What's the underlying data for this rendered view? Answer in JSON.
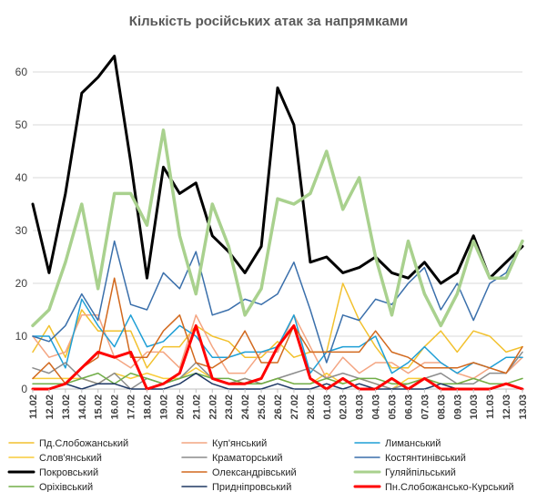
{
  "chart_data": {
    "type": "line",
    "title": "Кількість російських атак за напрямками",
    "xlabel": "",
    "ylabel": "",
    "ylim": [
      0,
      65
    ],
    "yticks": [
      0,
      10,
      20,
      30,
      40,
      50,
      60
    ],
    "grid": true,
    "legend_position": "bottom",
    "x": [
      "11.02",
      "12.02",
      "13.02",
      "14.02",
      "15.02",
      "16.02",
      "17.02",
      "18.02",
      "19.02",
      "20.02",
      "21.02",
      "22.02",
      "23.02",
      "24.02",
      "25.02",
      "26.02",
      "27.02",
      "28.02",
      "01.03",
      "02.03",
      "03.03",
      "04.03",
      "05.03",
      "06.03",
      "07.03",
      "08.03",
      "09.03",
      "10.03",
      "11.03",
      "12.03",
      "13.03"
    ],
    "x_labeled": [
      "11.02",
      "12.02",
      "13.02",
      "14.02",
      "15.02",
      "16.02",
      "17.02",
      "18.02",
      "19.02",
      "20.02",
      "21.02",
      "22.02",
      "23.02",
      "24.02",
      "25.02",
      "26.02",
      "27.02",
      "28.02",
      "01.03",
      "02.03",
      "03.03",
      "04.03",
      "05.03",
      "06.03",
      "07.03",
      "08.03",
      "09.03",
      "10.03",
      "11.03",
      "12.03",
      "13.03"
    ],
    "series": [
      {
        "name": "Пд.Слобожанський",
        "color": "#f2c12e",
        "width": 1.5,
        "values": [
          7,
          12,
          6,
          15,
          11,
          11,
          11,
          4,
          8,
          8,
          12,
          10,
          9,
          6,
          6,
          9,
          6,
          7,
          7,
          20,
          13,
          8,
          4,
          4,
          8,
          11,
          7,
          11,
          10,
          7,
          8
        ]
      },
      {
        "name": "Куп'янський",
        "color": "#f4a582",
        "width": 1.5,
        "values": [
          10,
          6,
          7,
          14,
          14,
          6,
          4,
          7,
          7,
          4,
          14,
          8,
          3,
          3,
          7,
          7,
          14,
          8,
          2,
          6,
          3,
          5,
          5,
          3,
          5,
          5,
          3,
          2,
          4,
          3,
          6
        ]
      },
      {
        "name": "Лиманський",
        "color": "#1f9fd6",
        "width": 1.5,
        "values": [
          10,
          10,
          4,
          17,
          12,
          8,
          14,
          8,
          9,
          12,
          10,
          6,
          6,
          7,
          7,
          8,
          14,
          3,
          7,
          8,
          8,
          10,
          3,
          5,
          8,
          5,
          3,
          5,
          4,
          6,
          6
        ]
      },
      {
        "name": "Слов'янський",
        "color": "#f9cc3a",
        "width": 1.5,
        "values": [
          2,
          2,
          2,
          2,
          1,
          3,
          2,
          3,
          2,
          2,
          4,
          2,
          1,
          2,
          1,
          2,
          1,
          1,
          3,
          1,
          2,
          1,
          0,
          2,
          2,
          1,
          1,
          2,
          1,
          1,
          0
        ]
      },
      {
        "name": "Краматорський",
        "color": "#8c8c8c",
        "width": 1.5,
        "values": [
          4,
          3,
          5,
          2,
          1,
          3,
          0,
          2,
          1,
          2,
          5,
          2,
          1,
          2,
          1,
          2,
          3,
          4,
          2,
          3,
          2,
          1,
          0,
          1,
          2,
          3,
          1,
          1,
          3,
          3,
          7
        ]
      },
      {
        "name": "Костянтинівський",
        "color": "#3a6fab",
        "width": 1.5,
        "values": [
          10,
          9,
          12,
          18,
          13,
          28,
          16,
          15,
          22,
          19,
          26,
          14,
          15,
          17,
          16,
          18,
          24,
          15,
          5,
          14,
          13,
          17,
          16,
          20,
          23,
          15,
          20,
          13,
          20,
          22,
          28
        ]
      },
      {
        "name": "Покровський",
        "color": "#000000",
        "width": 3,
        "values": [
          35,
          22,
          37,
          56,
          59,
          63,
          43,
          21,
          42,
          37,
          39,
          29,
          26,
          22,
          27,
          57,
          50,
          24,
          25,
          22,
          23,
          25,
          22,
          21,
          24,
          20,
          22,
          29,
          21,
          24,
          27
        ]
      },
      {
        "name": "Олександрівський",
        "color": "#d2691e",
        "width": 1.5,
        "values": [
          2,
          5,
          1,
          4,
          6,
          21,
          6,
          6,
          11,
          14,
          5,
          4,
          6,
          11,
          5,
          5,
          12,
          7,
          7,
          7,
          7,
          11,
          7,
          6,
          4,
          4,
          4,
          5,
          4,
          3,
          8
        ]
      },
      {
        "name": "Гуляйпільський",
        "color": "#a9d18e",
        "width": 3.5,
        "values": [
          12,
          15,
          24,
          35,
          19,
          37,
          37,
          31,
          49,
          29,
          18,
          35,
          27,
          14,
          19,
          36,
          35,
          37,
          45,
          34,
          40,
          25,
          14,
          28,
          18,
          12,
          18,
          28,
          21,
          21,
          28
        ]
      },
      {
        "name": "Оріхівський",
        "color": "#70ad47",
        "width": 1.5,
        "values": [
          1,
          1,
          1,
          2,
          3,
          1,
          3,
          2,
          1,
          2,
          3,
          2,
          2,
          1,
          1,
          2,
          1,
          1,
          2,
          1,
          2,
          2,
          1,
          1,
          2,
          1,
          1,
          2,
          1,
          1,
          2
        ]
      },
      {
        "name": "Придніпровський",
        "color": "#1f3864",
        "width": 1.5,
        "values": [
          0,
          0,
          1,
          0,
          1,
          1,
          0,
          0,
          0,
          1,
          3,
          1,
          0,
          0,
          0,
          1,
          0,
          0,
          1,
          0,
          1,
          0,
          0,
          0,
          0,
          1,
          0,
          0,
          0,
          1,
          0
        ]
      },
      {
        "name": "Пн.Слобожансько-Курський",
        "color": "#ff0000",
        "width": 3,
        "values": [
          0,
          0,
          1,
          4,
          7,
          6,
          7,
          0,
          1,
          3,
          12,
          2,
          1,
          1,
          2,
          8,
          12,
          2,
          0,
          2,
          0,
          0,
          2,
          0,
          2,
          0,
          0,
          0,
          0,
          1,
          0
        ]
      }
    ]
  }
}
